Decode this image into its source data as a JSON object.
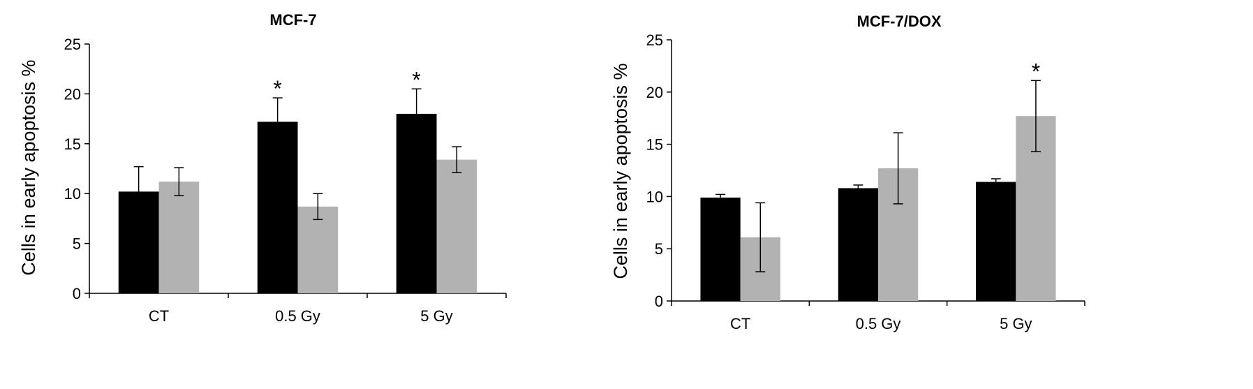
{
  "colors": {
    "series_1": "#000000",
    "series_2": "#b2b2b2",
    "axis": "#000000",
    "background": "#ffffff"
  },
  "chart_data": [
    {
      "type": "bar",
      "title": "MCF-7",
      "xlabel": "",
      "ylabel": "Cells in early apoptosis %",
      "categories": [
        "CT",
        "0.5 Gy",
        "5 Gy"
      ],
      "ylim": [
        0,
        25
      ],
      "yticks": [
        0,
        5,
        10,
        15,
        20,
        25
      ],
      "grid": false,
      "legend": "none",
      "series": [
        {
          "values": [
            10.2,
            17.2,
            18.0
          ],
          "errors": [
            2.5,
            2.4,
            2.5
          ],
          "color": "#000000"
        },
        {
          "values": [
            11.2,
            8.7,
            13.4
          ],
          "errors": [
            1.4,
            1.3,
            1.3
          ],
          "color": "#b2b2b2"
        }
      ],
      "annotations": [
        {
          "text": "*",
          "category": "0.5 Gy",
          "series_index": 0
        },
        {
          "text": "*",
          "category": "5 Gy",
          "series_index": 0
        }
      ]
    },
    {
      "type": "bar",
      "title": "MCF-7/DOX",
      "xlabel": "",
      "ylabel": "Cells in early apoptosis %",
      "categories": [
        "CT",
        "0.5 Gy",
        "5 Gy"
      ],
      "ylim": [
        0,
        25
      ],
      "yticks": [
        0,
        5,
        10,
        15,
        20,
        25
      ],
      "grid": false,
      "legend": "none",
      "series": [
        {
          "values": [
            9.9,
            10.8,
            11.4
          ],
          "errors": [
            0.3,
            0.3,
            0.3
          ],
          "color": "#000000"
        },
        {
          "values": [
            6.1,
            12.7,
            17.7
          ],
          "errors": [
            3.3,
            3.4,
            3.4
          ],
          "color": "#b2b2b2"
        }
      ],
      "annotations": [
        {
          "text": "*",
          "category": "5 Gy",
          "series_index": 1
        }
      ]
    }
  ]
}
